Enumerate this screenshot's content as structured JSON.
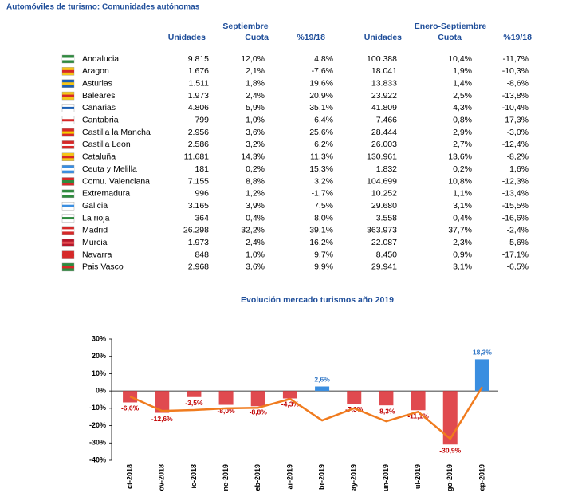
{
  "title": "Automóviles de turismo: Comunidades autónomas",
  "table": {
    "groups": [
      "Septiembre",
      "Enero-Septiembre"
    ],
    "columns": [
      "Unidades",
      "Cuota",
      "%19/18",
      "Unidades",
      "Cuota",
      "%19/18"
    ],
    "rows": [
      [
        "Andalucia",
        "9.815",
        "12,0%",
        "4,8%",
        "100.388",
        "10,4%",
        "-11,7%"
      ],
      [
        "Aragon",
        "1.676",
        "2,1%",
        "-7,6%",
        "18.041",
        "1,9%",
        "-10,3%"
      ],
      [
        "Asturias",
        "1.511",
        "1,8%",
        "19,6%",
        "13.833",
        "1,4%",
        "-8,6%"
      ],
      [
        "Baleares",
        "1.973",
        "2,4%",
        "20,9%",
        "23.922",
        "2,5%",
        "-13,8%"
      ],
      [
        "Canarias",
        "4.806",
        "5,9%",
        "35,1%",
        "41.809",
        "4,3%",
        "-10,4%"
      ],
      [
        "Cantabria",
        "799",
        "1,0%",
        "6,4%",
        "7.466",
        "0,8%",
        "-17,3%"
      ],
      [
        "Castilla la Mancha",
        "2.956",
        "3,6%",
        "25,6%",
        "28.444",
        "2,9%",
        "-3,0%"
      ],
      [
        "Castilla Leon",
        "2.586",
        "3,2%",
        "6,2%",
        "26.003",
        "2,7%",
        "-12,4%"
      ],
      [
        "Cataluña",
        "11.681",
        "14,3%",
        "11,3%",
        "130.961",
        "13,6%",
        "-8,2%"
      ],
      [
        "Ceuta y Melilla",
        "181",
        "0,2%",
        "15,3%",
        "1.832",
        "0,2%",
        "1,6%"
      ],
      [
        "Comu. Valenciana",
        "7.155",
        "8,8%",
        "3,2%",
        "104.699",
        "10,8%",
        "-12,3%"
      ],
      [
        "Extremadura",
        "996",
        "1,2%",
        "-1,7%",
        "10.252",
        "1,1%",
        "-13,4%"
      ],
      [
        "Galicia",
        "3.165",
        "3,9%",
        "7,5%",
        "29.680",
        "3,1%",
        "-15,5%"
      ],
      [
        "La rioja",
        "364",
        "0,4%",
        "8,0%",
        "3.558",
        "0,4%",
        "-16,6%"
      ],
      [
        "Madrid",
        "26.298",
        "32,2%",
        "39,1%",
        "363.973",
        "37,7%",
        "-2,4%"
      ],
      [
        "Murcia",
        "1.973",
        "2,4%",
        "16,2%",
        "22.087",
        "2,3%",
        "5,6%"
      ],
      [
        "Navarra",
        "848",
        "1,0%",
        "9,7%",
        "8.450",
        "0,9%",
        "-17,1%"
      ],
      [
        "Pais Vasco",
        "2.968",
        "3,6%",
        "9,9%",
        "29.941",
        "3,1%",
        "-6,5%"
      ]
    ]
  },
  "chart_data": {
    "type": "bar",
    "title": "Evolución mercado turismos año 2019",
    "categories": [
      "ct-2018",
      "ov-2018",
      "ic-2018",
      "ne-2019",
      "eb-2019",
      "ar-2019",
      "br-2019",
      "ay-2019",
      "un-2019",
      "ul-2019",
      "go-2019",
      "ep-2019"
    ],
    "series": [
      {
        "type": "bar",
        "values": [
          -6.6,
          -12.6,
          -3.5,
          -8.0,
          -8.8,
          -4.3,
          2.6,
          -7.3,
          -8.3,
          -11.1,
          -30.9,
          18.3
        ],
        "value_labels": [
          "-6,6%",
          "-12,6%",
          "-3,5%",
          "-8,0%",
          "-8,8%",
          "-4,3%",
          "2,6%",
          "-7,3%",
          "-8,3%",
          "-11,1%",
          "-30,9%",
          "18,3%"
        ],
        "colors": [
          "#e04a4f",
          "#e04a4f",
          "#e04a4f",
          "#e04a4f",
          "#e04a4f",
          "#e04a4f",
          "#3a8ee0",
          "#e04a4f",
          "#e04a4f",
          "#e04a4f",
          "#e04a4f",
          "#3a8ee0"
        ],
        "label_colors": [
          "#c00000",
          "#c00000",
          "#c00000",
          "#c00000",
          "#c00000",
          "#c00000",
          "#2f75c5",
          "#c00000",
          "#c00000",
          "#c00000",
          "#c00000",
          "#2f75c5"
        ]
      },
      {
        "type": "line",
        "color": "#f07b1e",
        "values": [
          -3.2,
          -11.5,
          -11,
          -10,
          -9.7,
          -4.6,
          -17,
          -10,
          -17.5,
          -12,
          -27.6,
          2.3
        ]
      }
    ],
    "ylim": [
      -40,
      30
    ],
    "yticks": [
      {
        "value": 30,
        "label": "30%"
      },
      {
        "value": 20,
        "label": "20%"
      },
      {
        "value": 10,
        "label": "10%"
      },
      {
        "value": 0,
        "label": "0%"
      },
      {
        "value": -10,
        "label": "-10%"
      },
      {
        "value": -20,
        "label": "-20%"
      },
      {
        "value": -30,
        "label": "-30%"
      },
      {
        "value": -40,
        "label": "-40%"
      }
    ]
  }
}
